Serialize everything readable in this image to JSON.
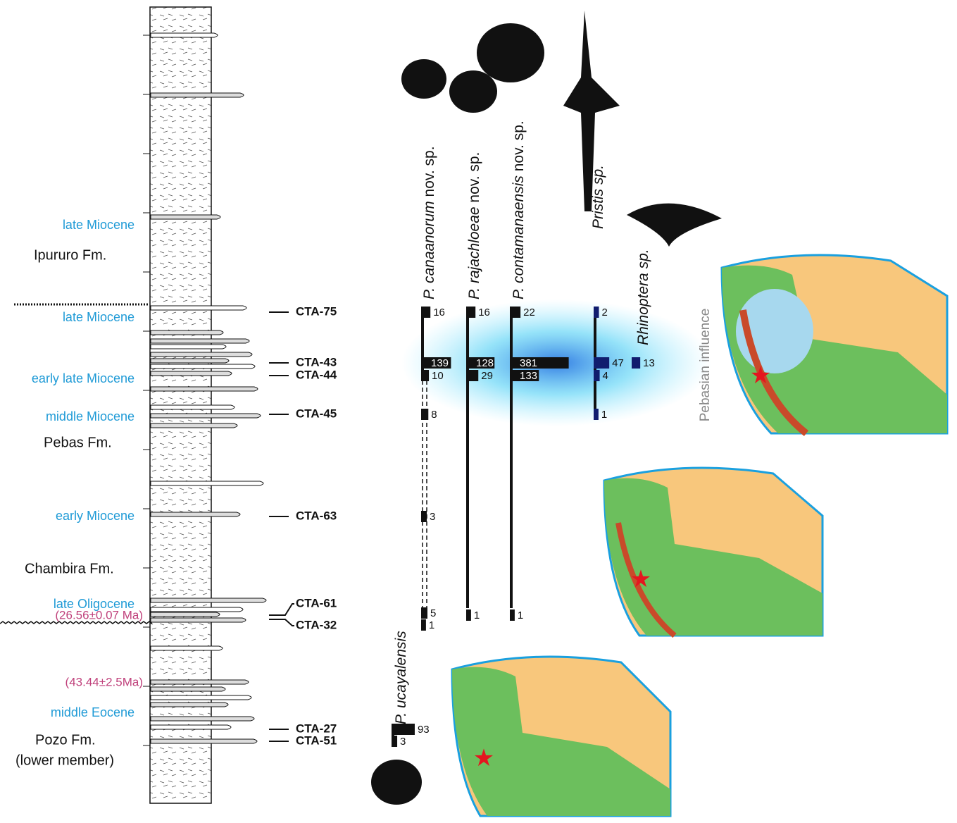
{
  "epochs": [
    "late Miocene",
    "late Miocene",
    "early late Miocene",
    "middle Miocene",
    "early Miocene",
    "late Oligocene",
    "middle Eocene"
  ],
  "formations": [
    "Ipururo Fm.",
    "Pebas Fm.",
    "Chambira Fm.",
    "Pozo Fm.",
    "(lower member)"
  ],
  "ages": [
    "(26.56±0.07 Ma)",
    "(43.44±2.5Ma)"
  ],
  "samples": [
    "CTA-75",
    "CTA-43",
    "CTA-44",
    "CTA-45",
    "CTA-63",
    "CTA-61",
    "CTA-32",
    "CTA-27",
    "CTA-51"
  ],
  "taxa": [
    {
      "name": "P. canaanorum",
      "suffix": " nov. sp.",
      "counts": [
        16,
        139,
        10,
        8,
        3,
        5,
        1,
        null,
        null
      ]
    },
    {
      "name": "P. rajachloeae",
      "suffix": " nov. sp.",
      "counts": [
        16,
        128,
        29,
        null,
        null,
        1,
        null,
        null,
        null
      ]
    },
    {
      "name": "P. contamanaensis",
      "suffix": " nov. sp.",
      "counts": [
        22,
        381,
        133,
        null,
        null,
        1,
        null,
        null,
        null
      ]
    },
    {
      "name": "Pristis sp.",
      "counts": [
        2,
        47,
        4,
        1,
        null,
        null,
        null,
        null,
        null
      ]
    },
    {
      "name": "Rhinoptera sp.",
      "counts": [
        null,
        13,
        null,
        null,
        null,
        null,
        null,
        null,
        null
      ]
    },
    {
      "name": "P. ucayalensis",
      "counts": [
        null,
        null,
        null,
        null,
        null,
        null,
        null,
        93,
        3
      ]
    }
  ],
  "side_label": "Pebasian influence"
}
